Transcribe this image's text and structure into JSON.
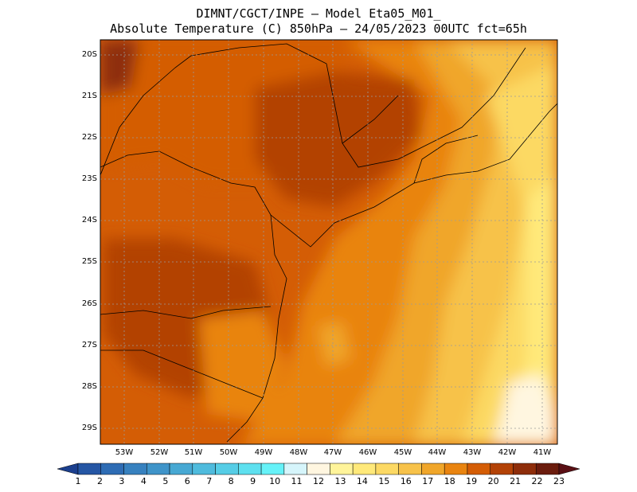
{
  "title": {
    "line1": "DIMNT/CGCT/INPE –  Model Eta05_M01_",
    "line2": "Absolute Temperature (C) 850hPa –  24/05/2023 00UTC fct=65h"
  },
  "map": {
    "lat_labels": [
      "20S",
      "21S",
      "22S",
      "23S",
      "24S",
      "25S",
      "26S",
      "27S",
      "28S",
      "29S"
    ],
    "lon_labels": [
      "53W",
      "52W",
      "51W",
      "50W",
      "49W",
      "48W",
      "47W",
      "46W",
      "45W",
      "44W",
      "43W",
      "42W",
      "41W"
    ],
    "grid": "dotted"
  },
  "colorbar": {
    "labels": [
      "1",
      "2",
      "3",
      "4",
      "5",
      "6",
      "7",
      "8",
      "9",
      "10",
      "11",
      "12",
      "13",
      "14",
      "15",
      "16",
      "17",
      "18",
      "19",
      "20",
      "21",
      "22",
      "23"
    ],
    "colors": [
      "#1b3f8e",
      "#2556a4",
      "#2e6cb4",
      "#3781bf",
      "#3f94c9",
      "#47a8d3",
      "#4fbbdd",
      "#56cde6",
      "#5ee0ef",
      "#66f2f8",
      "#d6f5fb",
      "#fff6e0",
      "#fff49a",
      "#ffe97a",
      "#fcd964",
      "#f7c24a",
      "#f0a62a",
      "#e98410",
      "#d45d05",
      "#b34206",
      "#8e2d0a",
      "#6b1c0d",
      "#5a0f14"
    ]
  }
}
